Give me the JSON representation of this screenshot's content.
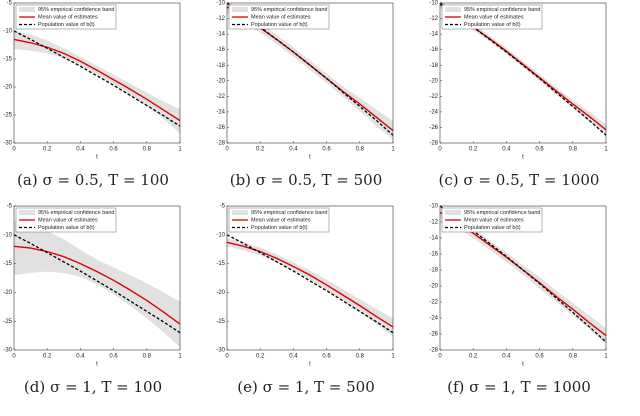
{
  "chart_data": [
    {
      "type": "line",
      "caption": "(a) σ = 0.5, T = 100",
      "x_label": "t",
      "x": [
        0,
        0.1,
        0.2,
        0.3,
        0.4,
        0.5,
        0.6,
        0.7,
        0.8,
        0.9,
        1
      ],
      "xlim": [
        0,
        1
      ],
      "xticks": [
        0,
        0.2,
        0.4,
        0.6,
        0.8,
        1
      ],
      "ylim": [
        -30,
        -5
      ],
      "yticks": [
        -30,
        -25,
        -20,
        -15,
        -10,
        -5
      ],
      "legend": "upper left",
      "series": [
        {
          "name": "95% empirical confidence band",
          "color": "#e1e1e1",
          "lower": [
            -13.2,
            -13.5,
            -14.0,
            -14.9,
            -16.2,
            -17.8,
            -19.5,
            -21.4,
            -23.4,
            -25.7,
            -28.3
          ],
          "upper": [
            -9.9,
            -10.6,
            -11.7,
            -13.1,
            -14.6,
            -16.2,
            -17.8,
            -19.4,
            -21.0,
            -22.6,
            -24.0
          ]
        },
        {
          "name": "Mean value of estimates",
          "color": "#e00000",
          "linestyle": "solid",
          "values": [
            -11.5,
            -12.1,
            -12.9,
            -14.0,
            -15.4,
            -17.0,
            -18.7,
            -20.4,
            -22.2,
            -24.1,
            -26.0
          ]
        },
        {
          "name": "Population value of b(t)",
          "color": "#000000",
          "linestyle": "dashed",
          "values": [
            -10,
            -11.5,
            -13.1,
            -14.7,
            -16.3,
            -18,
            -19.7,
            -21.5,
            -23.3,
            -25.1,
            -27
          ]
        }
      ]
    },
    {
      "type": "line",
      "caption": "(b) σ = 0.5, T = 500",
      "x_label": "t",
      "x": [
        0,
        0.1,
        0.2,
        0.3,
        0.4,
        0.5,
        0.6,
        0.7,
        0.8,
        0.9,
        1
      ],
      "xlim": [
        0,
        1
      ],
      "xticks": [
        0,
        0.2,
        0.4,
        0.6,
        0.8,
        1
      ],
      "ylim": [
        -28,
        -10
      ],
      "yticks": [
        -28,
        -26,
        -24,
        -22,
        -20,
        -18,
        -16,
        -14,
        -12,
        -10
      ],
      "legend": "upper left",
      "series": [
        {
          "name": "95% empirical confidence band",
          "color": "#e1e1e1",
          "lower": [
            -11.3,
            -12.5,
            -13.8,
            -15.3,
            -16.9,
            -18.6,
            -20.3,
            -22.1,
            -23.9,
            -25.8,
            -27.6
          ],
          "upper": [
            -9.8,
            -11.1,
            -12.6,
            -14.1,
            -15.7,
            -17.4,
            -19.1,
            -20.7,
            -22.2,
            -23.7,
            -25.2
          ]
        },
        {
          "name": "Mean value of estimates",
          "color": "#e00000",
          "linestyle": "solid",
          "values": [
            -10.5,
            -11.8,
            -13.2,
            -14.7,
            -16.3,
            -18.0,
            -19.7,
            -21.4,
            -23.0,
            -24.7,
            -26.4
          ]
        },
        {
          "name": "Population value of b(t)",
          "color": "#000000",
          "linestyle": "dashed",
          "values": [
            -10,
            -11.5,
            -13.1,
            -14.7,
            -16.3,
            -18,
            -19.7,
            -21.5,
            -23.3,
            -25.1,
            -27
          ]
        }
      ]
    },
    {
      "type": "line",
      "caption": "(c) σ = 0.5, T = 1000",
      "x_label": "t",
      "x": [
        0,
        0.1,
        0.2,
        0.3,
        0.4,
        0.5,
        0.6,
        0.7,
        0.8,
        0.9,
        1
      ],
      "xlim": [
        0,
        1
      ],
      "xticks": [
        0,
        0.2,
        0.4,
        0.6,
        0.8,
        1
      ],
      "ylim": [
        -28,
        -10
      ],
      "yticks": [
        -28,
        -26,
        -24,
        -22,
        -20,
        -18,
        -16,
        -14,
        -12,
        -10
      ],
      "legend": "upper left",
      "series": [
        {
          "name": "95% empirical confidence band",
          "color": "#e1e1e1",
          "lower": [
            -10.7,
            -12.0,
            -13.5,
            -15.0,
            -16.6,
            -18.3,
            -20.0,
            -21.8,
            -23.5,
            -25.3,
            -27.0
          ],
          "upper": [
            -9.7,
            -11.2,
            -12.7,
            -14.2,
            -15.8,
            -17.5,
            -19.2,
            -20.8,
            -22.5,
            -24.0,
            -25.6
          ]
        },
        {
          "name": "Mean value of estimates",
          "color": "#e00000",
          "linestyle": "solid",
          "values": [
            -10.2,
            -11.6,
            -13.1,
            -14.6,
            -16.2,
            -17.9,
            -19.6,
            -21.3,
            -23.0,
            -24.6,
            -26.3
          ]
        },
        {
          "name": "Population value of b(t)",
          "color": "#000000",
          "linestyle": "dashed",
          "values": [
            -10,
            -11.5,
            -13.1,
            -14.7,
            -16.3,
            -18,
            -19.7,
            -21.5,
            -23.3,
            -25.1,
            -27
          ]
        }
      ]
    },
    {
      "type": "line",
      "caption": "(d) σ = 1, T = 100",
      "x_label": "t",
      "x": [
        0,
        0.1,
        0.2,
        0.3,
        0.4,
        0.5,
        0.6,
        0.7,
        0.8,
        0.9,
        1
      ],
      "xlim": [
        0,
        1
      ],
      "xticks": [
        0,
        0.2,
        0.4,
        0.6,
        0.8,
        1
      ],
      "ylim": [
        -30,
        -5
      ],
      "yticks": [
        -30,
        -25,
        -20,
        -15,
        -10,
        -5
      ],
      "legend": "upper left",
      "series": [
        {
          "name": "95% empirical confidence band",
          "color": "#e1e1e1",
          "lower": [
            -17.0,
            -16.6,
            -16.4,
            -16.6,
            -17.3,
            -18.6,
            -20.3,
            -22.3,
            -24.5,
            -26.9,
            -29.5
          ],
          "upper": [
            -7.5,
            -8.3,
            -9.3,
            -10.8,
            -12.6,
            -14.3,
            -15.7,
            -17.0,
            -18.4,
            -20.0,
            -21.6
          ]
        },
        {
          "name": "Mean value of estimates",
          "color": "#e00000",
          "linestyle": "solid",
          "values": [
            -12.0,
            -12.3,
            -12.9,
            -13.8,
            -15.0,
            -16.4,
            -17.9,
            -19.6,
            -21.4,
            -23.4,
            -25.5
          ]
        },
        {
          "name": "Population value of b(t)",
          "color": "#000000",
          "linestyle": "dashed",
          "values": [
            -10,
            -11.5,
            -13.1,
            -14.7,
            -16.3,
            -18,
            -19.7,
            -21.5,
            -23.3,
            -25.1,
            -27
          ]
        }
      ]
    },
    {
      "type": "line",
      "caption": "(e) σ = 1, T = 500",
      "x_label": "t",
      "x": [
        0,
        0.1,
        0.2,
        0.3,
        0.4,
        0.5,
        0.6,
        0.7,
        0.8,
        0.9,
        1
      ],
      "xlim": [
        0,
        1
      ],
      "xticks": [
        0,
        0.2,
        0.4,
        0.6,
        0.8,
        1
      ],
      "ylim": [
        -30,
        -5
      ],
      "yticks": [
        -30,
        -25,
        -20,
        -15,
        -10,
        -5
      ],
      "legend": "upper left",
      "series": [
        {
          "name": "95% empirical confidence band",
          "color": "#e1e1e1",
          "lower": [
            -12.0,
            -12.7,
            -13.6,
            -14.8,
            -16.2,
            -17.8,
            -19.6,
            -21.5,
            -23.5,
            -25.5,
            -27.6
          ],
          "upper": [
            -10.6,
            -11.3,
            -12.2,
            -13.4,
            -14.8,
            -16.2,
            -17.8,
            -19.5,
            -21.2,
            -22.9,
            -24.5
          ]
        },
        {
          "name": "Mean value of estimates",
          "color": "#e00000",
          "linestyle": "solid",
          "values": [
            -11.3,
            -12.0,
            -12.9,
            -14.1,
            -15.5,
            -17.0,
            -18.7,
            -20.5,
            -22.3,
            -24.2,
            -26.0
          ]
        },
        {
          "name": "Population value of b(t)",
          "color": "#000000",
          "linestyle": "dashed",
          "values": [
            -10,
            -11.5,
            -13.1,
            -14.7,
            -16.3,
            -18,
            -19.7,
            -21.5,
            -23.3,
            -25.1,
            -27
          ]
        }
      ]
    },
    {
      "type": "line",
      "caption": "(f) σ = 1, T = 1000",
      "x_label": "t",
      "x": [
        0,
        0.1,
        0.2,
        0.3,
        0.4,
        0.5,
        0.6,
        0.7,
        0.8,
        0.9,
        1
      ],
      "xlim": [
        0,
        1
      ],
      "xticks": [
        0,
        0.2,
        0.4,
        0.6,
        0.8,
        1
      ],
      "ylim": [
        -28,
        -10
      ],
      "yticks": [
        -28,
        -26,
        -24,
        -22,
        -20,
        -18,
        -16,
        -14,
        -12,
        -10
      ],
      "legend": "upper left",
      "series": [
        {
          "name": "95% empirical confidence band",
          "color": "#e1e1e1",
          "lower": [
            -11.6,
            -12.7,
            -14.0,
            -15.5,
            -17.0,
            -18.6,
            -20.3,
            -22.0,
            -23.7,
            -25.4,
            -27.2
          ],
          "upper": [
            -10.0,
            -11.3,
            -12.8,
            -14.3,
            -15.8,
            -17.4,
            -18.9,
            -20.6,
            -22.1,
            -23.7,
            -25.3
          ]
        },
        {
          "name": "Mean value of estimates",
          "color": "#e00000",
          "linestyle": "solid",
          "values": [
            -10.8,
            -12.0,
            -13.4,
            -14.9,
            -16.4,
            -18.0,
            -19.6,
            -21.3,
            -22.9,
            -24.6,
            -26.2
          ]
        },
        {
          "name": "Population value of b(t)",
          "color": "#000000",
          "linestyle": "dashed",
          "values": [
            -10,
            -11.5,
            -13.1,
            -14.7,
            -16.3,
            -18,
            -19.7,
            -21.5,
            -23.3,
            -25.1,
            -27
          ]
        }
      ]
    }
  ]
}
